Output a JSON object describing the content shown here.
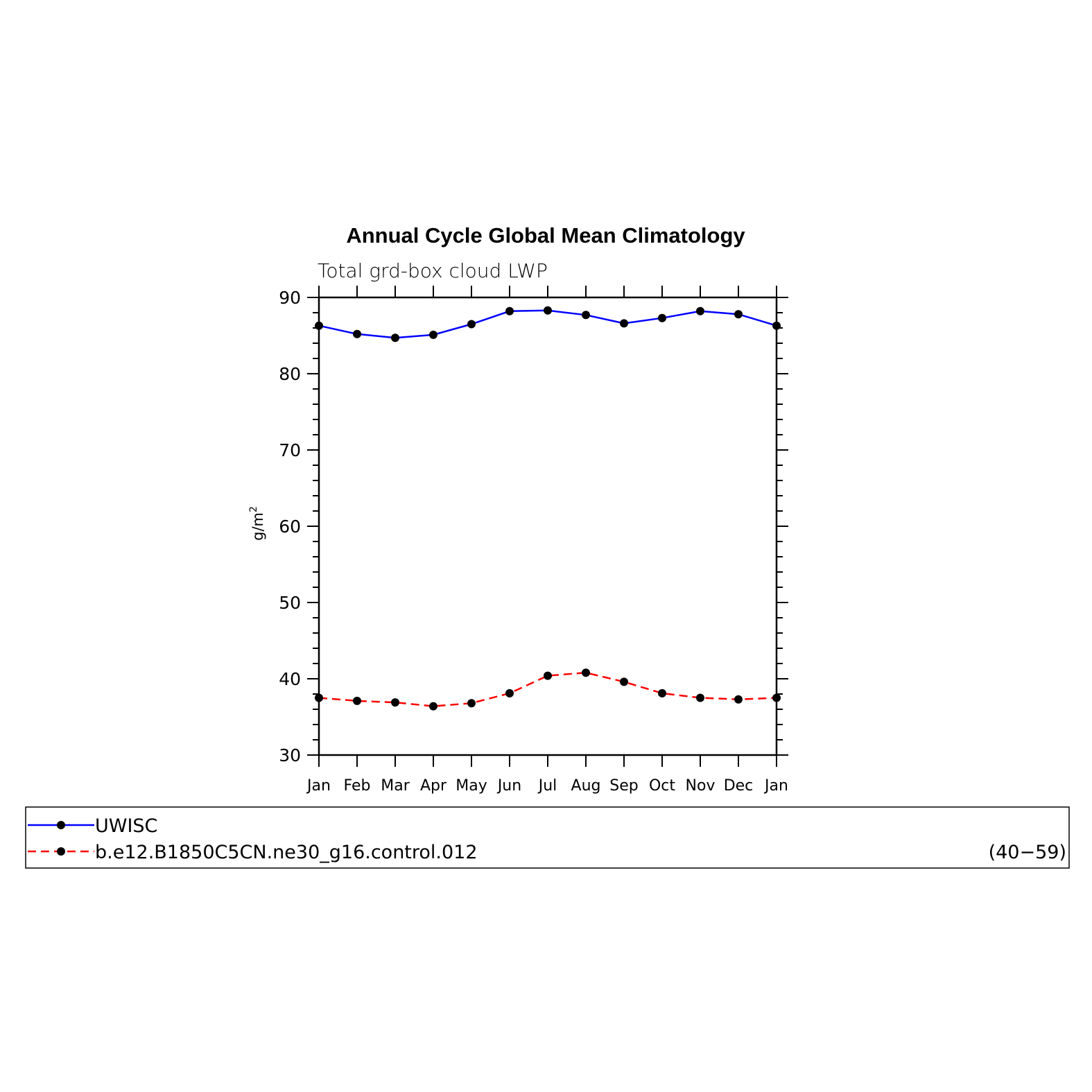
{
  "chart_data": {
    "type": "line",
    "title": "Annual Cycle Global Mean Climatology",
    "subtitle": "Total grd-box cloud LWP",
    "xlabel": "",
    "ylabel": "g/m",
    "ylabel_superscript": "2",
    "ylim": [
      30,
      90
    ],
    "yticks": [
      "30",
      "40",
      "50",
      "60",
      "70",
      "80",
      "90"
    ],
    "categories": [
      "Jan",
      "Feb",
      "Mar",
      "Apr",
      "May",
      "Jun",
      "Jul",
      "Aug",
      "Sep",
      "Oct",
      "Nov",
      "Dec",
      "Jan"
    ],
    "grid": false,
    "legend_position": "bottom",
    "series": [
      {
        "name": "UWISC",
        "color": "#0000ff",
        "line_style": "solid",
        "marker": "circle",
        "values": [
          86.3,
          85.2,
          84.7,
          85.1,
          86.5,
          88.2,
          88.3,
          87.7,
          86.6,
          87.3,
          88.2,
          87.8,
          86.3
        ]
      },
      {
        "name": "b.e12.B1850C5CN.ne30_g16.control.012",
        "color": "#ff0000",
        "line_style": "dashed",
        "marker": "circle",
        "values": [
          37.5,
          37.1,
          36.9,
          36.4,
          36.8,
          38.1,
          40.4,
          40.8,
          39.6,
          38.1,
          37.5,
          37.3,
          37.5
        ]
      }
    ],
    "legend_annotation": "(40−59)"
  }
}
